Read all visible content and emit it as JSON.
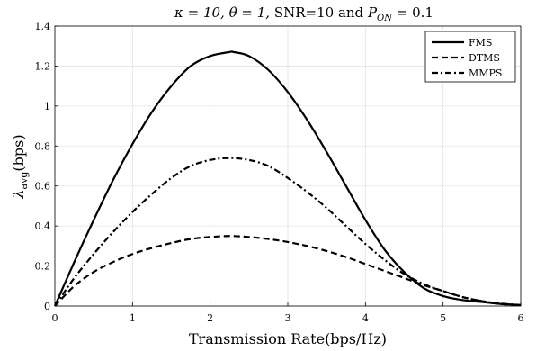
{
  "chart_data": {
    "type": "line",
    "title_parts": {
      "kappa": "κ = 10,",
      "theta": "θ = 1,",
      "snr": "SNR=10 and",
      "p_symbol": "P",
      "p_sub": "ON",
      "p_value": "= 0.1"
    },
    "xlabel": "Transmission Rate(bps/Hz)",
    "ylabel_parts": {
      "symbol": "λ",
      "sub": "avg",
      "unit": "(bps)"
    },
    "xlim": [
      0,
      6
    ],
    "ylim": [
      0,
      1.4
    ],
    "xticks": [
      "0",
      "1",
      "2",
      "3",
      "4",
      "5",
      "6"
    ],
    "yticks": [
      "0",
      "0.2",
      "0.4",
      "0.6",
      "0.8",
      "1",
      "1.2",
      "1.4"
    ],
    "grid": true,
    "legend_position": "top-right",
    "series": [
      {
        "name": "FMS",
        "style": "solid",
        "color": "#000000",
        "x": [
          0,
          0.25,
          0.5,
          0.75,
          1.0,
          1.25,
          1.5,
          1.75,
          2.0,
          2.25,
          2.3,
          2.5,
          2.75,
          3.0,
          3.25,
          3.5,
          3.75,
          4.0,
          4.25,
          4.5,
          4.75,
          5.0,
          5.25,
          5.5,
          5.75,
          6.0
        ],
        "y": [
          0,
          0.22,
          0.43,
          0.63,
          0.81,
          0.97,
          1.1,
          1.2,
          1.25,
          1.27,
          1.27,
          1.25,
          1.18,
          1.07,
          0.93,
          0.77,
          0.6,
          0.43,
          0.28,
          0.17,
          0.09,
          0.05,
          0.03,
          0.02,
          0.01,
          0.005
        ]
      },
      {
        "name": "DTMS",
        "style": "dashed",
        "color": "#000000",
        "x": [
          0,
          0.25,
          0.5,
          0.75,
          1.0,
          1.25,
          1.5,
          1.75,
          2.0,
          2.25,
          2.5,
          2.75,
          3.0,
          3.25,
          3.5,
          3.75,
          4.0,
          4.25,
          4.5,
          4.75,
          5.0,
          5.25,
          5.5,
          5.75,
          6.0
        ],
        "y": [
          0,
          0.1,
          0.17,
          0.22,
          0.26,
          0.29,
          0.315,
          0.335,
          0.345,
          0.35,
          0.345,
          0.335,
          0.32,
          0.3,
          0.275,
          0.245,
          0.21,
          0.175,
          0.14,
          0.105,
          0.075,
          0.045,
          0.025,
          0.01,
          0.005
        ]
      },
      {
        "name": "MMPS",
        "style": "dashdot",
        "color": "#000000",
        "x": [
          0,
          0.25,
          0.5,
          0.75,
          1.0,
          1.25,
          1.5,
          1.75,
          2.0,
          2.25,
          2.5,
          2.75,
          3.0,
          3.25,
          3.5,
          3.75,
          4.0,
          4.25,
          4.5,
          4.75,
          5.0,
          5.25,
          5.5,
          5.75,
          6.0
        ],
        "y": [
          0,
          0.14,
          0.26,
          0.37,
          0.47,
          0.56,
          0.64,
          0.7,
          0.73,
          0.74,
          0.73,
          0.7,
          0.64,
          0.57,
          0.49,
          0.4,
          0.31,
          0.23,
          0.16,
          0.11,
          0.075,
          0.045,
          0.025,
          0.012,
          0.005
        ]
      }
    ]
  }
}
